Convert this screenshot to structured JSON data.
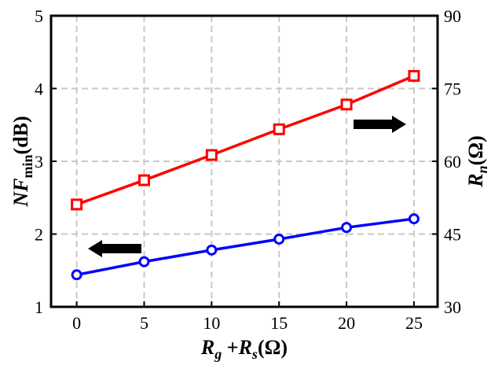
{
  "chart_data": {
    "type": "line",
    "title": "",
    "xlabel": {
      "main": "R",
      "sub1": "g",
      "plus": " +",
      "main2": "R",
      "sub2": "s",
      "unit": "(Ω)"
    },
    "ylabel_left": {
      "main": "NF",
      "sub": "min",
      "unit": "(dB)"
    },
    "ylabel_right": {
      "main": "R",
      "sub": "n",
      "unit": "(Ω)"
    },
    "x": [
      0,
      5,
      10,
      15,
      20,
      25
    ],
    "xlim": [
      -1.9,
      26.75
    ],
    "xticks": [
      0,
      5,
      10,
      15,
      20,
      25
    ],
    "ylim_left": [
      1,
      5
    ],
    "yticks_left": [
      1,
      2,
      3,
      4,
      5
    ],
    "ylim_right": [
      30,
      90
    ],
    "yticks_right": [
      30,
      45,
      60,
      75,
      90
    ],
    "grid": true,
    "series": [
      {
        "axis": "left",
        "color": "#0000ff",
        "marker": "circle",
        "values": [
          1.44,
          1.62,
          1.78,
          1.93,
          2.09,
          2.21
        ]
      },
      {
        "axis": "right",
        "color": "#ff0000",
        "marker": "square",
        "values": [
          51.1,
          56.1,
          61.3,
          66.6,
          71.7,
          77.6
        ]
      }
    ],
    "annotations": [
      {
        "type": "arrow",
        "direction": "left",
        "meaning": "blue series uses left axis"
      },
      {
        "type": "arrow",
        "direction": "right",
        "meaning": "red series uses right axis"
      }
    ]
  }
}
